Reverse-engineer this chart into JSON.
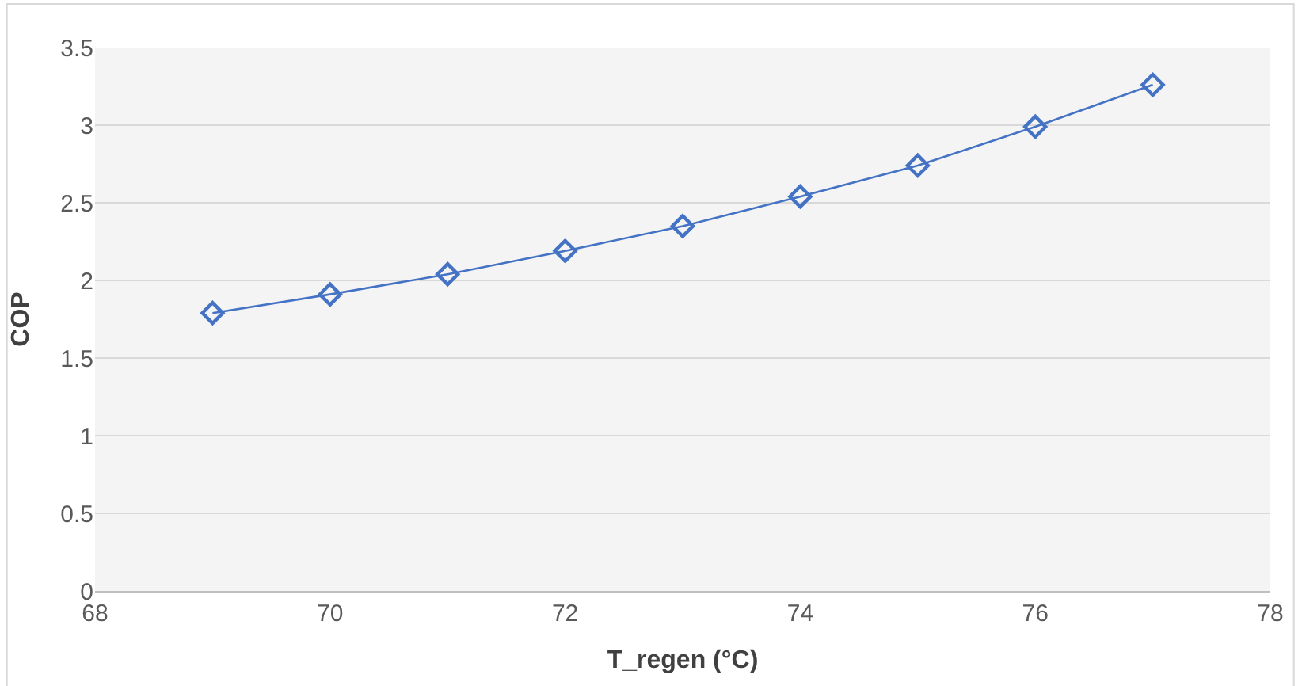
{
  "chart_data": {
    "type": "line",
    "xlabel": "T_regen (°C)",
    "ylabel": "COP",
    "x": [
      69,
      70,
      71,
      72,
      73,
      74,
      75,
      76,
      77
    ],
    "series": [
      {
        "color": "#4472c4",
        "values": [
          1.79,
          1.91,
          2.04,
          2.19,
          2.35,
          2.54,
          2.74,
          2.99,
          3.26
        ]
      }
    ],
    "xlim": [
      68,
      78
    ],
    "xticks": [
      68,
      70,
      72,
      74,
      76,
      78
    ],
    "ylim": [
      0,
      3.5
    ],
    "yticks": [
      0,
      0.5,
      1,
      1.5,
      2,
      2.5,
      3,
      3.5
    ],
    "grid": "y",
    "marker": "diamond",
    "line_style": "solid"
  }
}
